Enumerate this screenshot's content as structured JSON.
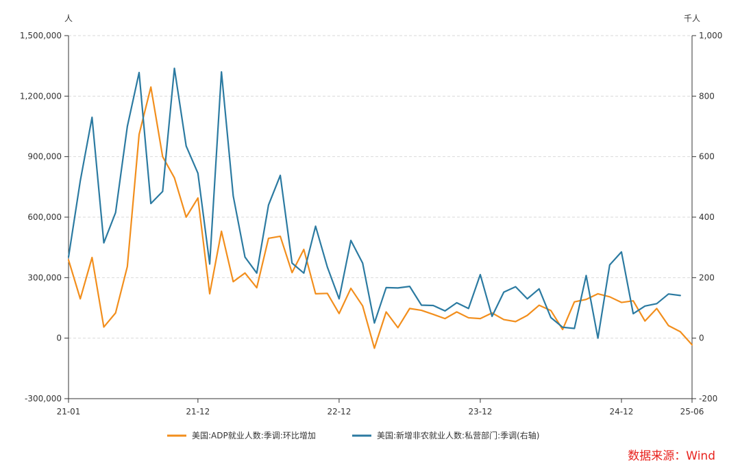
{
  "chart_data": {
    "type": "line",
    "title": "",
    "left_unit": "人",
    "right_unit": "千人",
    "x": [
      "21-01",
      "21-02",
      "21-03",
      "21-04",
      "21-05",
      "21-06",
      "21-07",
      "21-08",
      "21-09",
      "21-10",
      "21-11",
      "21-12",
      "22-01",
      "22-02",
      "22-03",
      "22-04",
      "22-05",
      "22-06",
      "22-07",
      "22-08",
      "22-09",
      "22-10",
      "22-11",
      "22-12",
      "23-01",
      "23-02",
      "23-03",
      "23-04",
      "23-05",
      "23-06",
      "23-07",
      "23-08",
      "23-09",
      "23-10",
      "23-11",
      "23-12",
      "24-01",
      "24-02",
      "24-03",
      "24-04",
      "24-05",
      "24-06",
      "24-07",
      "24-08",
      "24-09",
      "24-10",
      "24-11",
      "24-12",
      "25-01",
      "25-02",
      "25-03",
      "25-04",
      "25-05",
      "25-06"
    ],
    "x_tick_labels": [
      "21-01",
      "21-12",
      "22-12",
      "23-12",
      "24-12",
      "25-06"
    ],
    "y_left": {
      "min": -300000,
      "max": 1500000,
      "ticks": [
        -300000,
        0,
        300000,
        600000,
        900000,
        1200000,
        1500000
      ],
      "tick_labels": [
        "-300,000",
        "0",
        "300,000",
        "600,000",
        "900,000",
        "1,200,000",
        "1,500,000"
      ]
    },
    "y_right": {
      "min": -200,
      "max": 1000,
      "ticks": [
        -200,
        0,
        200,
        400,
        600,
        800,
        1000
      ],
      "tick_labels": [
        "-200",
        "0",
        "200",
        "400",
        "600",
        "800",
        "1,000"
      ]
    },
    "grid": true,
    "legend_position": "bottom",
    "series": [
      {
        "name": "美国:ADP就业人数:季调:环比增加",
        "axis": "left",
        "color": "#f28e1c",
        "values": [
          388000,
          195000,
          400000,
          55000,
          125000,
          355000,
          1010000,
          1245000,
          900000,
          795000,
          600000,
          695000,
          220000,
          530000,
          280000,
          323000,
          250000,
          495000,
          505000,
          325000,
          440000,
          220000,
          222000,
          122000,
          247000,
          160000,
          -50000,
          130000,
          52000,
          147000,
          138000,
          118000,
          97000,
          130000,
          101000,
          97000,
          125000,
          92000,
          82000,
          113000,
          163000,
          137000,
          43000,
          180000,
          192000,
          220000,
          205000,
          177000,
          185000,
          85000,
          147000,
          62000,
          32000,
          -33000
        ]
      },
      {
        "name": "美国:新增非农就业人数:私营部门:季调(右轴)",
        "axis": "right",
        "color": "#2b7aa1",
        "values": [
          268,
          520,
          730,
          315,
          415,
          700,
          878,
          445,
          485,
          892,
          635,
          545,
          245,
          880,
          470,
          268,
          215,
          440,
          538,
          248,
          215,
          370,
          235,
          130,
          323,
          248,
          50,
          167,
          166,
          171,
          109,
          108,
          90,
          117,
          98,
          210,
          72,
          152,
          170,
          130,
          163,
          68,
          36,
          32,
          207,
          0,
          242,
          285,
          81,
          106,
          114,
          146,
          141,
          null
        ]
      }
    ],
    "source_note": "数据来源：Wind"
  }
}
